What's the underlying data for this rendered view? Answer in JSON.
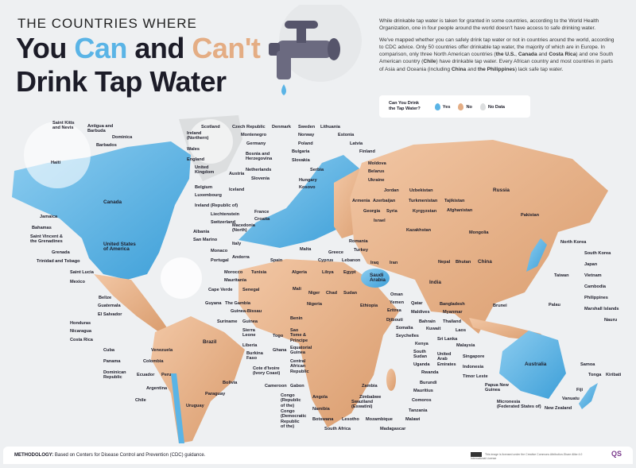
{
  "header": {
    "kicker": "THE COUNTRIES WHERE",
    "title_you": "You ",
    "title_can": "Can",
    "title_and": " and ",
    "title_cant": "Can't",
    "title_line2": "Drink Tap Water"
  },
  "intro": {
    "p1": "While drinkable tap water is taken for granted in some countries, according to the World Health Organization, one in four people around the world doesn't have access to safe drinking water.",
    "p2_a": "We've mapped whether you can safely drink tap water or not in countries around the world, according to CDC advice. Only 50 countries offer drinkable tap water, the majority of which are in Europe. In comparison, only three North American countries (",
    "p2_us": "the U.S.",
    "p2_sep1": ", ",
    "p2_canada": "Canada",
    "p2_and1": " and ",
    "p2_cr": "Costa Rica",
    "p2_b": ") and one South American country (",
    "p2_chile": "Chile",
    "p2_c": ") have drinkable tap water. Every African country and most countries in parts of Asia and Oceania (including ",
    "p2_china": "China",
    "p2_and2": " and ",
    "p2_ph": "the Philippines",
    "p2_d": ") lack safe tap water."
  },
  "legend": {
    "question": "Can You Drink\nthe Tap Water?",
    "yes": "Yes",
    "no": "No",
    "nodata": "No Data",
    "colors": {
      "yes": "#5ab4e6",
      "no": "#e4ad84",
      "nodata": "#dcdedf"
    }
  },
  "map": {
    "labels": [
      "Saint Kitts\nand Nevis",
      "Antigua and\nBarbuda",
      "Dominica",
      "Barbados",
      "Haiti",
      "Canada",
      "Jamaica",
      "Bahamas",
      "Saint Vincent &\nthe Grenadines",
      "Grenada",
      "Trinidad and Tobago",
      "United States\nof America",
      "Saint Lucia",
      "Mexico",
      "Belize",
      "Guatemala",
      "El Salvador",
      "Honduras",
      "Nicaragua",
      "Costa Rica",
      "Cuba",
      "Panama",
      "Dominican\nRepublic",
      "Venezuela",
      "Colombia",
      "Ecuador",
      "Peru",
      "Argentina",
      "Chile",
      "Bolivia",
      "Paraguay",
      "Uruguay",
      "Brazil",
      "Guyana",
      "Suriname",
      "The Gambia",
      "Guinea-Bissau",
      "Guinea",
      "Cape Verde",
      "Senegal",
      "Mauritania",
      "Morocco",
      "Tunisia",
      "Sierra\nLeone",
      "Liberia",
      "Togo",
      "Ghana",
      "Burkina\nFaso",
      "Cote d'Ivoire\n(Ivory Coast)",
      "Cameroon",
      "Gabon",
      "Benin",
      "Sao\nTome &\nPrincipe",
      "Equatorial\nGuinea",
      "Central\nAfrican\nRepublic",
      "Congo\n(Republic\nof the)",
      "Congo\n(Democratic\nRepublic\nof the)",
      "Angola",
      "Namibia",
      "Botswana",
      "Lesotho",
      "South Africa",
      "Mozambique",
      "Madagascar",
      "Malawi",
      "Swaziland\n(Eswatini)",
      "Zimbabwe",
      "Zambia",
      "Tanzania",
      "Comoros",
      "Mauritius",
      "Burundi",
      "Rwanda",
      "Uganda",
      "South\nSudan",
      "Kenya",
      "Seychelles",
      "Somalia",
      "Djibouti",
      "Eritrea",
      "Yemen",
      "Oman",
      "Ethiopia",
      "Sudan",
      "Chad",
      "Niger",
      "Nigeria",
      "Mali",
      "Algeria",
      "Libya",
      "Egypt",
      "Saudi\nArabia",
      "Qatar",
      "Maldives",
      "Bahrain",
      "Kuwait",
      "United\nArab\nEmirates",
      "Bangladesh",
      "Myanmar",
      "Thailand",
      "Laos",
      "Sri Lanka",
      "Malaysia",
      "Singapore",
      "Indonesia",
      "Timor Leste",
      "Papua New\nGuinea",
      "Micronesia\n(Federated States of)",
      "Australia",
      "New Zealand",
      "Vanuatu",
      "Fiji",
      "Samoa",
      "Tonga",
      "Kiribati",
      "Nauru",
      "Marshall Islands",
      "Palau",
      "Brunei",
      "Philippines",
      "Cambodia",
      "Vietnam",
      "Taiwan",
      "Japan",
      "South Korea",
      "North Korea",
      "Pakistan",
      "Russia",
      "Mongolia",
      "China",
      "Bhutan",
      "Nepal",
      "India",
      "Kazakhstan",
      "Afghanistan",
      "Kyrgyzstan",
      "Tajikistan",
      "Turkmenistan",
      "Uzbekistan",
      "Jordan",
      "Syria",
      "Israel",
      "Georgia",
      "Azerbaijan",
      "Armenia",
      "Iraq",
      "Iran",
      "Lebanon",
      "Turkey",
      "Romania",
      "Cyprus",
      "Greece",
      "Malta",
      "Scotland",
      "Czech Republic",
      "Denmark",
      "Sweden",
      "Lithuania",
      "Ireland\n(Northern)",
      "Montenegro",
      "Norway",
      "Estonia",
      "Wales",
      "Germany",
      "Poland",
      "Latvia",
      "Bulgaria",
      "Finland",
      "Bosnia and\nHerzegovina",
      "Slovakia",
      "England",
      "Moldova",
      "Serbia",
      "United\nKingdom",
      "Austria",
      "Netherlands",
      "Belarus",
      "Slovenia",
      "Hungary",
      "Ukraine",
      "Kosovo",
      "Belgium",
      "Iceland",
      "Luxembourg",
      "Ireland (Republic of)",
      "Liechtenstein",
      "France",
      "Switzerland",
      "Croatia",
      "Albania",
      "Macedonia\n(North)",
      "San Marino",
      "Italy",
      "Monaco",
      "Andorra",
      "Portugal",
      "Spain"
    ]
  },
  "footer": {
    "methodology_label": "METHODOLOGY:",
    "methodology": " Based on Centers for Disease Control and Prevention (CDC) guidance.",
    "license": "This image is licensed under the Creative Commons Attribution-Share Alike 4.0 International License",
    "logo": "QS"
  }
}
